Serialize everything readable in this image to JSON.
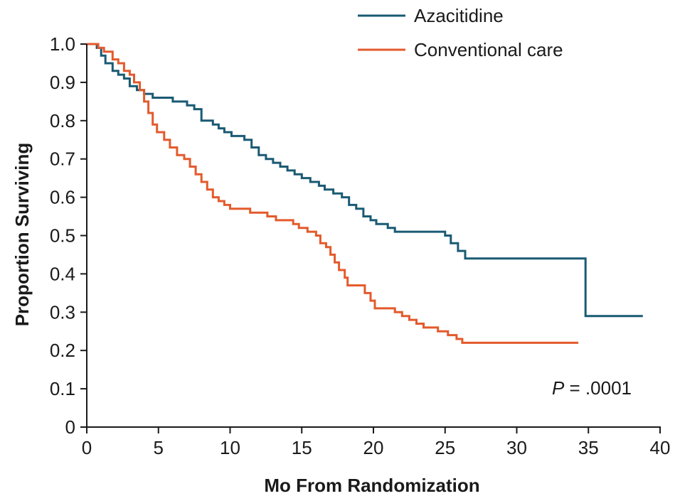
{
  "chart_data": {
    "type": "line",
    "step": true,
    "xlabel": "Mo From Randomization",
    "ylabel": "Proportion Surviving",
    "xlim": [
      0,
      40
    ],
    "ylim": [
      0,
      1.0
    ],
    "x_ticks": [
      0,
      5,
      10,
      15,
      20,
      25,
      30,
      35,
      40
    ],
    "y_ticks": [
      0,
      0.1,
      0.2,
      0.3,
      0.4,
      0.5,
      0.6,
      0.7,
      0.8,
      0.9,
      1.0
    ],
    "x_tick_labels": [
      "0",
      "5",
      "10",
      "15",
      "20",
      "25",
      "30",
      "35",
      "40"
    ],
    "y_tick_labels": [
      "0",
      "0.1",
      "0.2",
      "0.3",
      "0.4",
      "0.5",
      "0.6",
      "0.7",
      "0.8",
      "0.9",
      "1.0"
    ],
    "grid": false,
    "legend_position": "top-right",
    "annotation": {
      "italic": "P",
      "text": " = .0001"
    },
    "series": [
      {
        "name": "Azacitidine",
        "color": "#1a5a73",
        "points": [
          [
            0,
            1.0
          ],
          [
            0.7,
            0.99
          ],
          [
            1.0,
            0.97
          ],
          [
            1.3,
            0.95
          ],
          [
            1.8,
            0.93
          ],
          [
            2.2,
            0.92
          ],
          [
            2.6,
            0.91
          ],
          [
            3.0,
            0.89
          ],
          [
            3.5,
            0.88
          ],
          [
            4.0,
            0.87
          ],
          [
            4.6,
            0.86
          ],
          [
            5.2,
            0.86
          ],
          [
            6.0,
            0.85
          ],
          [
            7.0,
            0.84
          ],
          [
            7.5,
            0.83
          ],
          [
            8.0,
            0.8
          ],
          [
            8.8,
            0.79
          ],
          [
            9.2,
            0.78
          ],
          [
            9.6,
            0.77
          ],
          [
            10.1,
            0.76
          ],
          [
            11.0,
            0.75
          ],
          [
            11.5,
            0.73
          ],
          [
            12.0,
            0.71
          ],
          [
            12.5,
            0.7
          ],
          [
            13.0,
            0.69
          ],
          [
            13.5,
            0.68
          ],
          [
            14.0,
            0.67
          ],
          [
            14.5,
            0.66
          ],
          [
            15.0,
            0.65
          ],
          [
            15.6,
            0.64
          ],
          [
            16.2,
            0.63
          ],
          [
            16.6,
            0.62
          ],
          [
            17.2,
            0.61
          ],
          [
            17.8,
            0.6
          ],
          [
            18.3,
            0.58
          ],
          [
            18.8,
            0.57
          ],
          [
            19.3,
            0.55
          ],
          [
            19.8,
            0.54
          ],
          [
            20.2,
            0.53
          ],
          [
            21.0,
            0.52
          ],
          [
            21.5,
            0.51
          ],
          [
            22.0,
            0.51
          ],
          [
            23.5,
            0.51
          ],
          [
            24.5,
            0.51
          ],
          [
            25.0,
            0.5
          ],
          [
            25.4,
            0.48
          ],
          [
            25.9,
            0.46
          ],
          [
            26.4,
            0.44
          ],
          [
            31.0,
            0.44
          ],
          [
            34.8,
            0.44
          ],
          [
            34.8,
            0.29
          ],
          [
            38.8,
            0.29
          ]
        ]
      },
      {
        "name": "Conventional care",
        "color": "#e35a2c",
        "points": [
          [
            0,
            1.0
          ],
          [
            0.8,
            0.99
          ],
          [
            1.2,
            0.98
          ],
          [
            1.8,
            0.96
          ],
          [
            2.2,
            0.95
          ],
          [
            2.6,
            0.93
          ],
          [
            3.0,
            0.92
          ],
          [
            3.3,
            0.9
          ],
          [
            3.7,
            0.88
          ],
          [
            4.0,
            0.85
          ],
          [
            4.3,
            0.82
          ],
          [
            4.6,
            0.79
          ],
          [
            4.9,
            0.77
          ],
          [
            5.4,
            0.75
          ],
          [
            5.8,
            0.73
          ],
          [
            6.3,
            0.71
          ],
          [
            6.8,
            0.7
          ],
          [
            7.2,
            0.68
          ],
          [
            7.6,
            0.66
          ],
          [
            8.0,
            0.64
          ],
          [
            8.4,
            0.62
          ],
          [
            8.8,
            0.6
          ],
          [
            9.2,
            0.59
          ],
          [
            9.6,
            0.58
          ],
          [
            10.0,
            0.57
          ],
          [
            10.8,
            0.57
          ],
          [
            11.4,
            0.56
          ],
          [
            12.0,
            0.56
          ],
          [
            12.6,
            0.55
          ],
          [
            13.2,
            0.54
          ],
          [
            14.0,
            0.54
          ],
          [
            14.4,
            0.53
          ],
          [
            14.8,
            0.52
          ],
          [
            15.4,
            0.51
          ],
          [
            16.0,
            0.5
          ],
          [
            16.3,
            0.48
          ],
          [
            16.7,
            0.47
          ],
          [
            17.0,
            0.45
          ],
          [
            17.3,
            0.43
          ],
          [
            17.6,
            0.41
          ],
          [
            18.0,
            0.39
          ],
          [
            18.2,
            0.37
          ],
          [
            18.8,
            0.37
          ],
          [
            19.4,
            0.35
          ],
          [
            19.8,
            0.33
          ],
          [
            20.1,
            0.31
          ],
          [
            20.8,
            0.31
          ],
          [
            21.5,
            0.3
          ],
          [
            22.0,
            0.29
          ],
          [
            22.5,
            0.28
          ],
          [
            23.0,
            0.27
          ],
          [
            23.5,
            0.26
          ],
          [
            24.0,
            0.26
          ],
          [
            24.5,
            0.25
          ],
          [
            25.2,
            0.24
          ],
          [
            25.8,
            0.23
          ],
          [
            26.2,
            0.22
          ],
          [
            30.0,
            0.22
          ],
          [
            34.3,
            0.22
          ]
        ]
      }
    ]
  }
}
